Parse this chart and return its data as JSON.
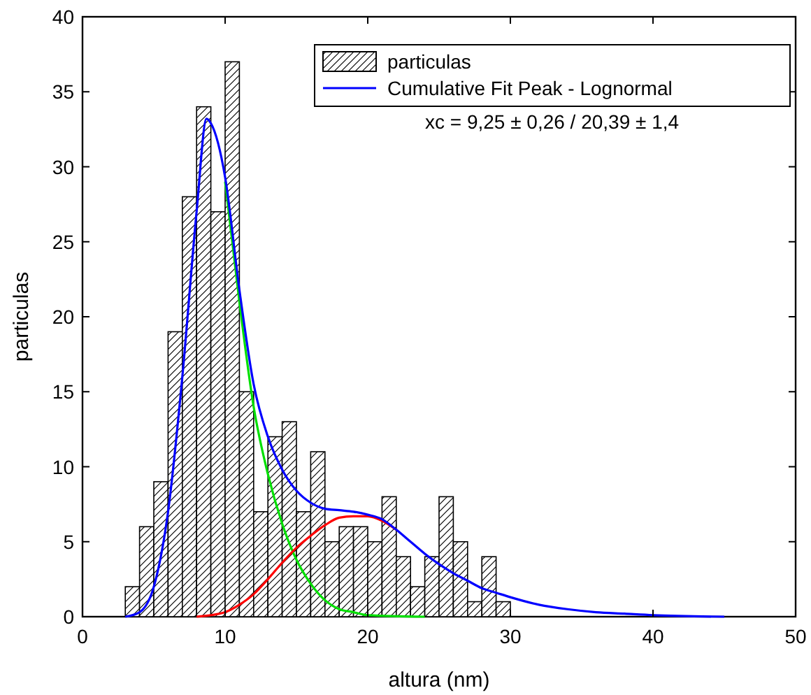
{
  "chart_data": {
    "type": "histogram",
    "xlabel": "altura (nm)",
    "ylabel": "particulas",
    "xlim": [
      0,
      50
    ],
    "xticks": [
      0,
      10,
      20,
      30,
      40,
      50
    ],
    "ylim": [
      0,
      40
    ],
    "yticks": [
      0,
      5,
      10,
      15,
      20,
      25,
      30,
      35,
      40
    ],
    "grid": false,
    "legend": "top right",
    "annotations": [
      "xc = 9,25 ± 0,26 / 20,39 ± 1,4"
    ],
    "series": [
      {
        "name": "particulas",
        "color": "#000000",
        "bins": [
          3,
          4,
          5,
          6,
          7,
          8,
          9,
          10,
          11,
          12,
          13,
          14,
          15,
          16,
          17,
          18,
          19,
          20,
          21,
          22,
          23,
          24,
          25,
          26,
          27,
          28,
          29,
          30
        ],
        "values": [
          2,
          6,
          9,
          19,
          28,
          34,
          27,
          37,
          15,
          7,
          12,
          13,
          7,
          11,
          5,
          6,
          6,
          5,
          8,
          4,
          2,
          4,
          8,
          5,
          1,
          4,
          1
        ]
      },
      {
        "type": "line",
        "color": "#00e000",
        "x": [
          10,
          11,
          12,
          13,
          14,
          15,
          16,
          17,
          18,
          19,
          20,
          24
        ],
        "values": [
          29,
          21,
          14,
          9.5,
          6.2,
          3.8,
          2.2,
          1.1,
          0.5,
          0.3,
          0.1,
          0
        ]
      },
      {
        "type": "line",
        "color": "#ff0000",
        "x": [
          8,
          9,
          10,
          11,
          12,
          13,
          14,
          15,
          16,
          17,
          18,
          19,
          20,
          21,
          22
        ],
        "values": [
          0,
          0.1,
          0.3,
          0.8,
          1.5,
          2.5,
          3.6,
          4.6,
          5.4,
          6.1,
          6.6,
          6.7,
          6.7,
          6.4,
          5.8
        ]
      },
      {
        "type": "line",
        "name": "Cumulative Fit Peak - Lognormal",
        "color": "#0000ff",
        "x": [
          3,
          4,
          5,
          6,
          7,
          8,
          8.7,
          9,
          10,
          11,
          12,
          13,
          14,
          15,
          16,
          17,
          18,
          19,
          20,
          21,
          22,
          23,
          24,
          25,
          26,
          27,
          28,
          29,
          30,
          32,
          34,
          36,
          38,
          40,
          45
        ],
        "values": [
          0,
          0.3,
          2,
          7,
          16,
          27,
          33.2,
          32.9,
          29.3,
          21.8,
          15.5,
          12,
          9.8,
          8.4,
          7.6,
          7.2,
          7.1,
          7.0,
          6.8,
          6.5,
          5.8,
          5.0,
          4.2,
          3.5,
          2.9,
          2.4,
          1.9,
          1.6,
          1.3,
          0.8,
          0.5,
          0.3,
          0.2,
          0.1,
          0
        ]
      }
    ]
  }
}
